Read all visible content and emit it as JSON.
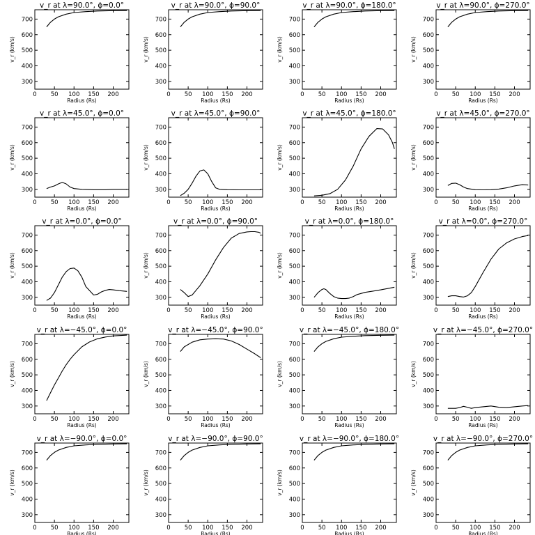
{
  "common": {
    "xlabel": "Radius (Rs)",
    "ylabel": "v_r (km/s)",
    "xlim": [
      0,
      240
    ],
    "ylim": [
      250,
      760
    ],
    "xticks": [
      0,
      50,
      100,
      150,
      200
    ],
    "yticks": [
      300,
      400,
      500,
      600,
      700
    ]
  },
  "chart_data": [
    {
      "type": "line",
      "title": "v_r at λ=90.0°, ϕ=0.0°",
      "xlabel": "Radius (Rs)",
      "ylabel": "v_r (km/s)",
      "xlim": [
        0,
        240
      ],
      "ylim": [
        250,
        760
      ],
      "x": [
        30,
        40,
        50,
        60,
        80,
        100,
        130,
        160,
        200,
        235
      ],
      "y": [
        650,
        680,
        700,
        715,
        732,
        742,
        748,
        752,
        754,
        755
      ]
    },
    {
      "type": "line",
      "title": "v_r at λ=90.0°, ϕ=90.0°",
      "xlabel": "Radius (Rs)",
      "ylabel": "v_r (km/s)",
      "xlim": [
        0,
        240
      ],
      "ylim": [
        250,
        760
      ],
      "x": [
        30,
        40,
        50,
        60,
        80,
        100,
        130,
        160,
        200,
        235
      ],
      "y": [
        650,
        680,
        700,
        715,
        732,
        742,
        748,
        752,
        754,
        755
      ]
    },
    {
      "type": "line",
      "title": "v_r at λ=90.0°, ϕ=180.0°",
      "xlabel": "Radius (Rs)",
      "ylabel": "v_r (km/s)",
      "xlim": [
        0,
        240
      ],
      "ylim": [
        250,
        760
      ],
      "x": [
        30,
        40,
        50,
        60,
        80,
        100,
        130,
        160,
        200,
        235
      ],
      "y": [
        650,
        680,
        700,
        715,
        732,
        742,
        748,
        752,
        754,
        755
      ]
    },
    {
      "type": "line",
      "title": "v_r at λ=90.0°, ϕ=270.0°",
      "xlabel": "Radius (Rs)",
      "ylabel": "v_r (km/s)",
      "xlim": [
        0,
        240
      ],
      "ylim": [
        250,
        760
      ],
      "x": [
        30,
        40,
        50,
        60,
        80,
        100,
        130,
        160,
        200,
        235
      ],
      "y": [
        650,
        680,
        700,
        715,
        732,
        742,
        748,
        752,
        754,
        755
      ]
    },
    {
      "type": "line",
      "title": "v_r at λ=45.0°, ϕ=0.0°",
      "xlabel": "Radius (Rs)",
      "ylabel": "v_r (km/s)",
      "xlim": [
        0,
        240
      ],
      "ylim": [
        250,
        760
      ],
      "x": [
        30,
        40,
        50,
        60,
        70,
        80,
        90,
        100,
        120,
        150,
        180,
        200,
        220,
        235
      ],
      "y": [
        305,
        315,
        322,
        335,
        345,
        335,
        315,
        305,
        300,
        298,
        298,
        300,
        300,
        300
      ]
    },
    {
      "type": "line",
      "title": "v_r at λ=45.0°, ϕ=90.0°",
      "xlabel": "Radius (Rs)",
      "ylabel": "v_r (km/s)",
      "xlim": [
        0,
        240
      ],
      "ylim": [
        250,
        760
      ],
      "x": [
        30,
        40,
        50,
        60,
        70,
        80,
        90,
        100,
        110,
        120,
        130,
        150,
        180,
        210,
        235
      ],
      "y": [
        260,
        275,
        300,
        340,
        385,
        418,
        425,
        400,
        350,
        310,
        300,
        298,
        297,
        297,
        297
      ]
    },
    {
      "type": "line",
      "title": "v_r at λ=45.0°, ϕ=180.0°",
      "xlabel": "Radius (Rs)",
      "ylabel": "v_r (km/s)",
      "xlim": [
        0,
        240
      ],
      "ylim": [
        250,
        760
      ],
      "x": [
        30,
        50,
        70,
        90,
        110,
        130,
        150,
        170,
        190,
        205,
        220,
        230,
        235
      ],
      "y": [
        258,
        262,
        272,
        300,
        360,
        450,
        560,
        640,
        690,
        688,
        650,
        600,
        560
      ]
    },
    {
      "type": "line",
      "title": "v_r at λ=45.0°, ϕ=270.0°",
      "xlabel": "Radius (Rs)",
      "ylabel": "v_r (km/s)",
      "xlim": [
        0,
        240
      ],
      "ylim": [
        250,
        760
      ],
      "x": [
        30,
        40,
        50,
        60,
        70,
        80,
        100,
        120,
        140,
        160,
        180,
        200,
        220,
        235
      ],
      "y": [
        325,
        338,
        340,
        330,
        315,
        305,
        298,
        297,
        298,
        302,
        310,
        322,
        330,
        328
      ]
    },
    {
      "type": "line",
      "title": "v_r at λ=0.0°, ϕ=0.0°",
      "xlabel": "Radius (Rs)",
      "ylabel": "v_r (km/s)",
      "xlim": [
        0,
        240
      ],
      "ylim": [
        250,
        760
      ],
      "x": [
        30,
        40,
        50,
        60,
        70,
        80,
        90,
        100,
        110,
        120,
        130,
        150,
        160,
        170,
        180,
        190,
        200,
        215,
        235
      ],
      "y": [
        280,
        295,
        330,
        380,
        430,
        465,
        485,
        488,
        470,
        430,
        370,
        315,
        320,
        335,
        345,
        350,
        348,
        343,
        338
      ]
    },
    {
      "type": "line",
      "title": "v_r at λ=0.0°, ϕ=90.0°",
      "xlabel": "Radius (Rs)",
      "ylabel": "v_r (km/s)",
      "xlim": [
        0,
        240
      ],
      "ylim": [
        250,
        760
      ],
      "x": [
        30,
        40,
        50,
        60,
        70,
        80,
        100,
        120,
        140,
        160,
        180,
        200,
        210,
        220,
        230,
        235
      ],
      "y": [
        350,
        330,
        305,
        315,
        345,
        375,
        450,
        540,
        620,
        680,
        710,
        720,
        722,
        722,
        718,
        712
      ]
    },
    {
      "type": "line",
      "title": "v_r at λ=0.0°, ϕ=180.0°",
      "xlabel": "Radius (Rs)",
      "ylabel": "v_r (km/s)",
      "xlim": [
        0,
        240
      ],
      "ylim": [
        250,
        760
      ],
      "x": [
        30,
        40,
        50,
        55,
        60,
        70,
        80,
        90,
        100,
        110,
        120,
        130,
        140,
        160,
        180,
        200,
        220,
        235
      ],
      "y": [
        300,
        330,
        350,
        355,
        350,
        325,
        305,
        295,
        292,
        292,
        295,
        305,
        318,
        332,
        340,
        348,
        358,
        365
      ]
    },
    {
      "type": "line",
      "title": "v_r at λ=0.0°, ϕ=270.0°",
      "xlabel": "Radius (Rs)",
      "ylabel": "v_r (km/s)",
      "xlim": [
        0,
        240
      ],
      "ylim": [
        250,
        760
      ],
      "x": [
        30,
        40,
        50,
        60,
        70,
        80,
        90,
        100,
        120,
        140,
        160,
        180,
        200,
        220,
        235
      ],
      "y": [
        305,
        310,
        310,
        305,
        302,
        310,
        330,
        370,
        460,
        545,
        610,
        650,
        675,
        690,
        697
      ]
    },
    {
      "type": "line",
      "title": "v_r at λ=−45.0°, ϕ=0.0°",
      "xlabel": "Radius (Rs)",
      "ylabel": "v_r (km/s)",
      "xlim": [
        0,
        240
      ],
      "ylim": [
        250,
        760
      ],
      "x": [
        30,
        40,
        50,
        60,
        70,
        80,
        90,
        100,
        120,
        140,
        160,
        180,
        200,
        220,
        235
      ],
      "y": [
        335,
        385,
        435,
        480,
        525,
        565,
        600,
        630,
        680,
        712,
        732,
        743,
        750,
        753,
        755
      ]
    },
    {
      "type": "line",
      "title": "v_r at λ=−45.0°, ϕ=90.0°",
      "xlabel": "Radius (Rs)",
      "ylabel": "v_r (km/s)",
      "xlim": [
        0,
        240
      ],
      "ylim": [
        250,
        760
      ],
      "x": [
        30,
        40,
        60,
        80,
        100,
        120,
        140,
        160,
        180,
        200,
        220,
        235
      ],
      "y": [
        650,
        680,
        710,
        725,
        730,
        732,
        730,
        718,
        695,
        665,
        635,
        610
      ]
    },
    {
      "type": "line",
      "title": "v_r at λ=−45.0°, ϕ=180.0°",
      "xlabel": "Radius (Rs)",
      "ylabel": "v_r (km/s)",
      "xlim": [
        0,
        240
      ],
      "ylim": [
        250,
        760
      ],
      "x": [
        30,
        40,
        50,
        60,
        80,
        100,
        130,
        160,
        200,
        235
      ],
      "y": [
        650,
        680,
        700,
        715,
        732,
        742,
        748,
        752,
        754,
        755
      ]
    },
    {
      "type": "line",
      "title": "v_r at λ=−45.0°, ϕ=270.0°",
      "xlabel": "Radius (Rs)",
      "ylabel": "v_r (km/s)",
      "xlim": [
        0,
        240
      ],
      "ylim": [
        250,
        760
      ],
      "x": [
        30,
        50,
        60,
        70,
        80,
        90,
        100,
        120,
        140,
        160,
        180,
        200,
        220,
        235
      ],
      "y": [
        285,
        285,
        290,
        298,
        292,
        285,
        290,
        295,
        300,
        292,
        290,
        295,
        300,
        303
      ]
    },
    {
      "type": "line",
      "title": "v_r at λ=−90.0°, ϕ=0.0°",
      "xlabel": "Radius (Rs)",
      "ylabel": "v_r (km/s)",
      "xlim": [
        0,
        240
      ],
      "ylim": [
        250,
        760
      ],
      "x": [
        30,
        40,
        50,
        60,
        80,
        100,
        130,
        160,
        200,
        235
      ],
      "y": [
        650,
        680,
        700,
        715,
        732,
        742,
        748,
        752,
        754,
        755
      ]
    },
    {
      "type": "line",
      "title": "v_r at λ=−90.0°, ϕ=90.0°",
      "xlabel": "Radius (Rs)",
      "ylabel": "v_r (km/s)",
      "xlim": [
        0,
        240
      ],
      "ylim": [
        250,
        760
      ],
      "x": [
        30,
        40,
        50,
        60,
        80,
        100,
        130,
        160,
        200,
        235
      ],
      "y": [
        650,
        680,
        700,
        715,
        732,
        742,
        748,
        752,
        754,
        755
      ]
    },
    {
      "type": "line",
      "title": "v_r at λ=−90.0°, ϕ=180.0°",
      "xlabel": "Radius (Rs)",
      "ylabel": "v_r (km/s)",
      "xlim": [
        0,
        240
      ],
      "ylim": [
        250,
        760
      ],
      "x": [
        30,
        40,
        50,
        60,
        80,
        100,
        130,
        160,
        200,
        235
      ],
      "y": [
        650,
        680,
        700,
        715,
        732,
        742,
        748,
        752,
        754,
        755
      ]
    },
    {
      "type": "line",
      "title": "v_r at λ=−90.0°, ϕ=270.0°",
      "xlabel": "Radius (Rs)",
      "ylabel": "v_r (km/s)",
      "xlim": [
        0,
        240
      ],
      "ylim": [
        250,
        760
      ],
      "x": [
        30,
        40,
        50,
        60,
        80,
        100,
        130,
        160,
        200,
        235
      ],
      "y": [
        650,
        680,
        700,
        715,
        732,
        742,
        748,
        752,
        754,
        755
      ]
    }
  ]
}
